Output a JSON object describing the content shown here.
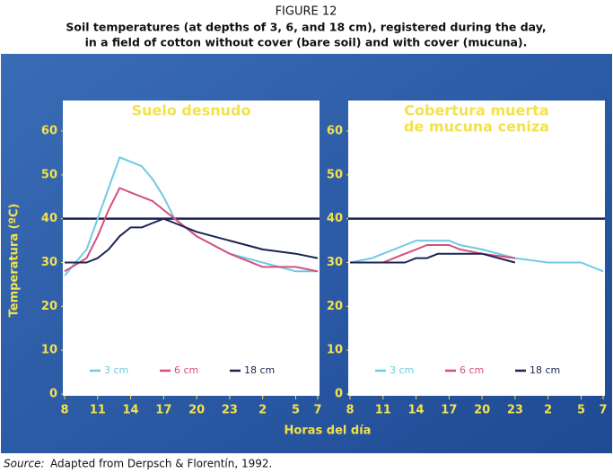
{
  "figure_label": "FIGURE 12",
  "caption": [
    "Soil temperatures (at depths of 3, 6, and 18 cm), registered during the day,",
    "in a field of cotton without cover (bare soil) and with cover (mucuna)."
  ],
  "shared_xlabel": "Horas del día",
  "source_label": "Source:",
  "source": "Adapted from Derpsch & Florentín, 1992.",
  "chart_data": [
    {
      "type": "line",
      "title": [
        "Suelo desnudo"
      ],
      "ylabel": "Temperatura (ºC)",
      "x": [
        8,
        10,
        11,
        12,
        13,
        14,
        15,
        16,
        17,
        18,
        20,
        23,
        26,
        29,
        31
      ],
      "xlim": [
        8,
        31
      ],
      "xticks": [
        8,
        11,
        14,
        17,
        20,
        23,
        {
          "value": 26,
          "label": "2"
        },
        {
          "value": 29,
          "label": "5"
        },
        {
          "value": 31,
          "label": "7"
        }
      ],
      "ylim": [
        0,
        60
      ],
      "yticks": [
        0,
        10,
        20,
        30,
        40,
        50,
        60
      ],
      "hline": 40,
      "series": [
        {
          "name": "3 cm",
          "color": "#6fcbe3",
          "values": [
            27,
            33,
            40,
            47,
            54,
            53,
            52,
            49,
            45,
            40,
            36,
            32,
            30,
            28,
            28
          ]
        },
        {
          "name": "6 cm",
          "color": "#d4507c",
          "values": [
            28,
            31,
            36,
            42,
            47,
            46,
            45,
            44,
            42,
            40,
            36,
            32,
            29,
            29,
            28
          ]
        },
        {
          "name": "18 cm",
          "color": "#1b2452",
          "values": [
            30,
            30,
            31,
            33,
            36,
            38,
            38,
            39,
            40,
            39,
            37,
            35,
            33,
            32,
            31
          ]
        }
      ]
    },
    {
      "type": "line",
      "title": [
        "Cobertura muerta",
        "de mucuna ceniza"
      ],
      "x": [
        8,
        10,
        11,
        12,
        13,
        14,
        15,
        16,
        17,
        18,
        20,
        23,
        26,
        29,
        31
      ],
      "xlim": [
        8,
        31
      ],
      "xticks": [
        8,
        11,
        14,
        17,
        20,
        23,
        {
          "value": 26,
          "label": "2"
        },
        {
          "value": 29,
          "label": "5"
        },
        {
          "value": 31,
          "label": "7"
        }
      ],
      "ylim": [
        0,
        60
      ],
      "yticks": [
        0,
        10,
        20,
        30,
        40,
        50,
        60
      ],
      "hline": 40,
      "series": [
        {
          "name": "3 cm",
          "color": "#6fcbe3",
          "values": [
            30,
            31,
            32,
            33,
            34,
            35,
            35,
            35,
            35,
            34,
            33,
            31,
            30,
            30,
            28
          ]
        },
        {
          "name": "6 cm",
          "color": "#d4507c",
          "values": [
            30,
            30,
            30,
            31,
            32,
            33,
            34,
            34,
            34,
            33,
            32,
            31,
            null,
            null,
            null
          ]
        },
        {
          "name": "18 cm",
          "color": "#1b2452",
          "values": [
            30,
            30,
            30,
            30,
            30,
            31,
            31,
            32,
            32,
            32,
            32,
            30,
            null,
            null,
            null
          ]
        }
      ]
    }
  ]
}
